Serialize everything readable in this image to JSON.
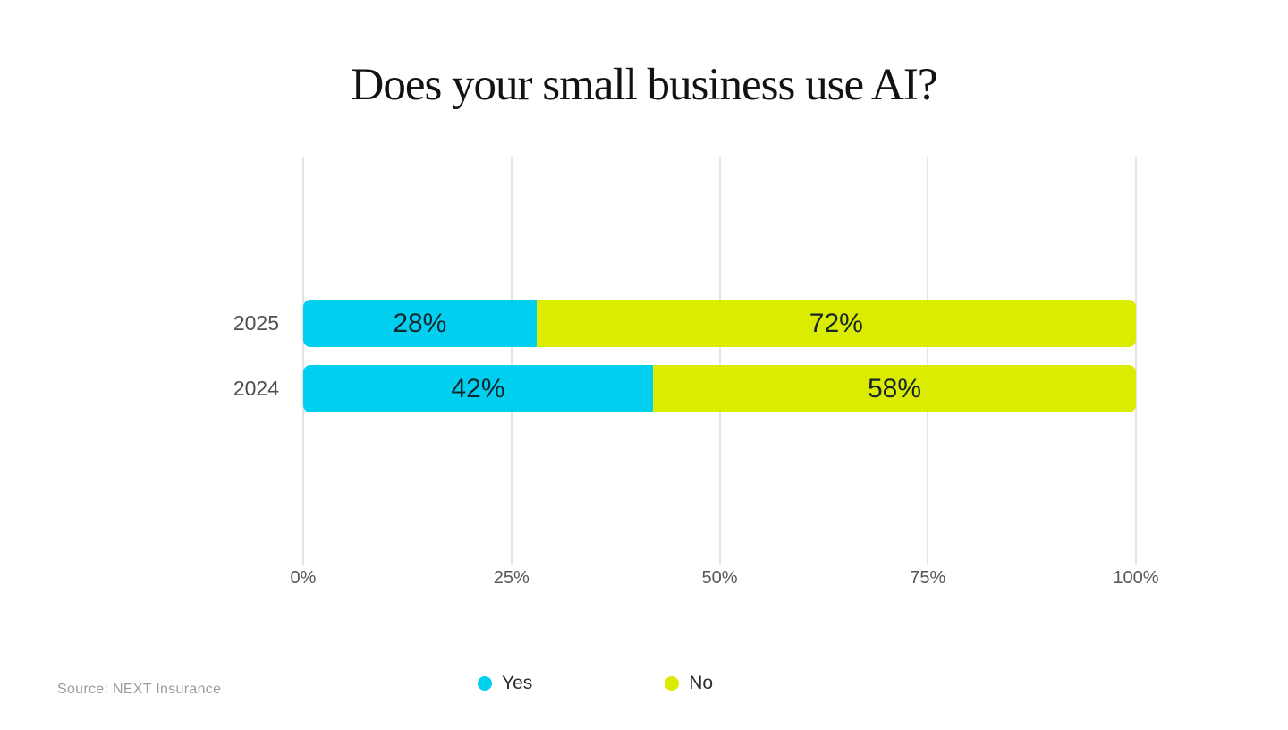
{
  "title": "Does your small business use AI?",
  "source_note": "Source: NEXT Insurance",
  "colors": {
    "yes": "#00CFF0",
    "no": "#DCEC00",
    "background": "#FFFFFF",
    "gridline": "#E4E4E4",
    "title_text": "#121212",
    "bar_label_text": "#15262D",
    "category_text": "#4F4F4F",
    "axis_text": "#565656",
    "legend_text": "#2E2E2E",
    "source_text": "#9C9C9C"
  },
  "chart_data": {
    "type": "bar",
    "orientation": "horizontal",
    "stacked": true,
    "title": "Does your small business use AI?",
    "categories": [
      "2025",
      "2024"
    ],
    "series": [
      {
        "name": "Yes",
        "color_key": "yes",
        "values": [
          28,
          42
        ],
        "labels": [
          "28%",
          "42%"
        ]
      },
      {
        "name": "No",
        "color_key": "no",
        "values": [
          72,
          58
        ],
        "labels": [
          "72%",
          "58%"
        ]
      }
    ],
    "x_ticks": [
      "0%",
      "25%",
      "50%",
      "75%",
      "100%"
    ],
    "xlim": [
      0,
      100
    ],
    "grid": true,
    "legend_position": "bottom"
  },
  "legend": {
    "items": [
      {
        "label": "Yes",
        "color_key": "yes"
      },
      {
        "label": "No",
        "color_key": "no"
      }
    ]
  }
}
